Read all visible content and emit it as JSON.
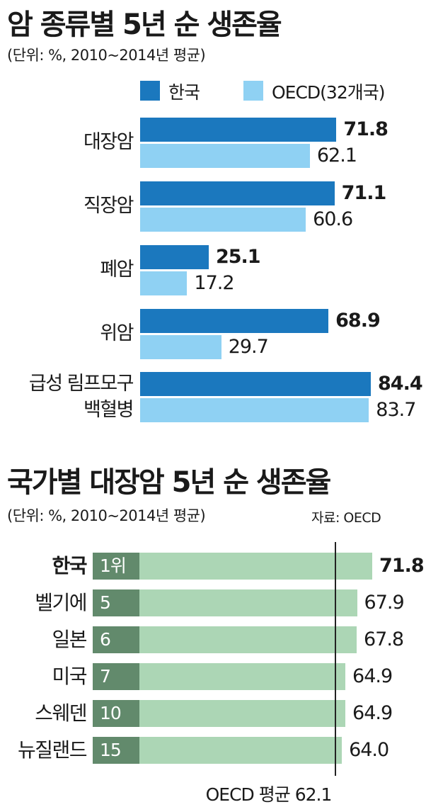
{
  "chart_data": [
    {
      "type": "bar",
      "title": "암 종류별 5년 순 생존율",
      "subtitle": "(단위: %, 2010~2014년 평균)",
      "orientation": "horizontal",
      "legend_placement": "top-right",
      "categories": [
        "대장암",
        "직장암",
        "폐암",
        "위암",
        "급성 림프모구 백혈병"
      ],
      "category_lines": [
        [
          "대장암"
        ],
        [
          "직장암"
        ],
        [
          "폐암"
        ],
        [
          "위암"
        ],
        [
          "급성 림프모구",
          "백혈병"
        ]
      ],
      "series": [
        {
          "name": "한국",
          "color": "#1b78be",
          "values": [
            71.8,
            71.1,
            25.1,
            68.9,
            84.4
          ],
          "labels": [
            "71.8",
            "71.1",
            "25.1",
            "68.9",
            "84.4"
          ]
        },
        {
          "name": "OECD(32개국)",
          "color": "#8fd1f3",
          "values": [
            62.1,
            60.6,
            17.2,
            29.7,
            83.7
          ],
          "labels": [
            "62.1",
            "60.6",
            "17.2",
            "29.7",
            "83.7"
          ]
        }
      ],
      "xlim": [
        0,
        84.4
      ],
      "grid": false
    },
    {
      "type": "bar",
      "title": "국가별 대장암 5년 순 생존율",
      "subtitle": "(단위: %,  2010~2014년 평균)",
      "source": "자료: OECD",
      "orientation": "horizontal",
      "categories": [
        "한국",
        "벨기에",
        "일본",
        "미국",
        "스웨덴",
        "뉴질랜드"
      ],
      "ranks": [
        "1위",
        "5",
        "6",
        "7",
        "10",
        "15"
      ],
      "values": [
        71.8,
        67.9,
        67.8,
        64.9,
        64.9,
        64.0
      ],
      "labels": [
        "71.8",
        "67.9",
        "67.8",
        "64.9",
        "64.9",
        "64.0"
      ],
      "reference_line": {
        "label": "OECD 평균 62.1",
        "value": 62.1
      },
      "grid": false
    }
  ],
  "colors": {
    "korea": "#1b78be",
    "oecd": "#8fd1f3",
    "rank_box": "#628a6c",
    "country_bar": "#acd6b5"
  }
}
